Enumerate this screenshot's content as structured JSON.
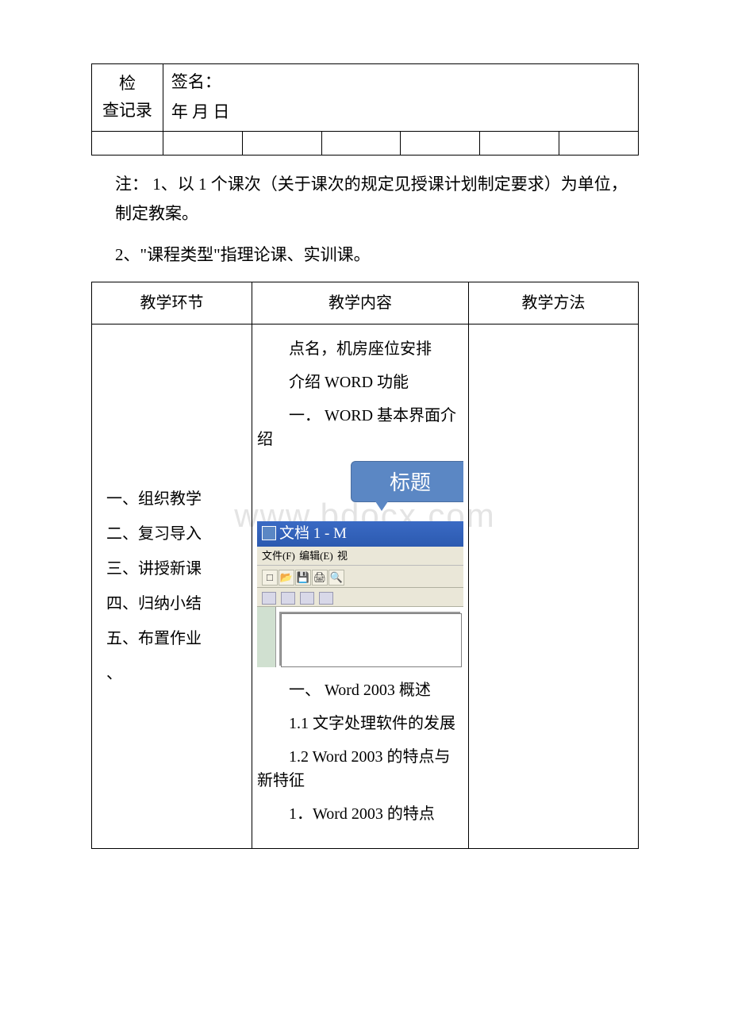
{
  "top_table": {
    "col1": "检\n查记录",
    "signature_line": "签名：",
    "date_line": "年 月 日"
  },
  "notes": {
    "line1": "注：  1、以 1 个课次（关于课次的规定见授课计划制定要求）为单位，制定教案。",
    "line2": "2、\"课程类型\"指理论课、实训课。"
  },
  "main_table": {
    "headers": [
      "教学环节",
      "教学内容",
      "教学方法"
    ],
    "left_col_items": [
      "一、组织教学",
      "二、复习导入",
      "三、讲授新课",
      "四、归纳小结",
      "五、布置作业",
      "、"
    ],
    "content": {
      "p1": "点名，机房座位安排",
      "p2": "介绍 WORD 功能",
      "p3": "一．  WORD 基本界面介绍",
      "p4": "一、 Word 2003 概述",
      "p5": "1.1 文字处理软件的发展",
      "p6": "1.2 Word 2003 的特点与新特征",
      "p7": "1．Word 2003 的特点"
    }
  },
  "word_screenshot": {
    "balloon_text": "标题",
    "title_text": "文档 1 - M",
    "menu_items": [
      "文件(F)",
      "编辑(E)",
      "视"
    ]
  },
  "watermark": "www.bdocx.com",
  "colors": {
    "border": "#000000",
    "text": "#000000",
    "balloon_bg": "#5b87c4",
    "balloon_border": "#4a6ea0",
    "titlebar_start": "#3a6ac4",
    "titlebar_end": "#2c5ab0",
    "menubar_bg": "#eae7d8",
    "watermark": "#e4e4e4"
  },
  "typography": {
    "body_fontsize": 21,
    "note_fontsize": 21,
    "table_fontsize": 20,
    "balloon_fontsize": 26,
    "watermark_fontsize": 42
  }
}
